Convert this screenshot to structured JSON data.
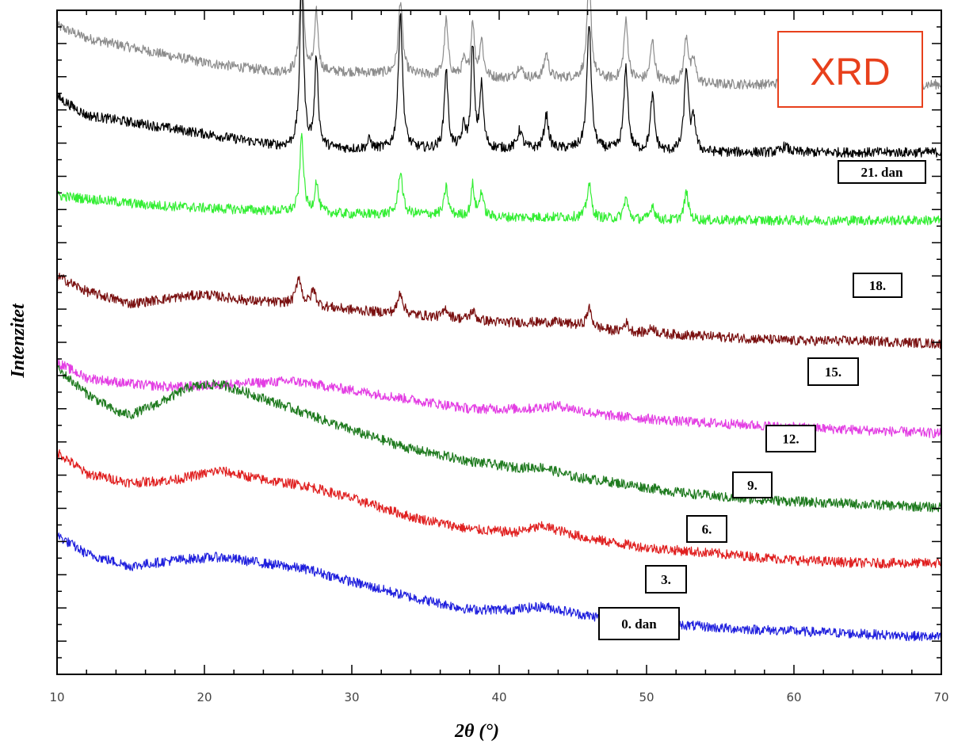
{
  "chart_data": {
    "type": "line",
    "title": "",
    "badge": "XRD",
    "xlabel": "2θ (°)",
    "ylabel": "Intenzitet",
    "xlim": [
      10,
      70
    ],
    "x_ticks": [
      "10",
      "20",
      "30",
      "40",
      "50",
      "60",
      "70"
    ],
    "grid": false,
    "colors": {
      "badge": "#e8401c",
      "axes": "#000000",
      "ticks": "#444444"
    },
    "series": [
      {
        "name": "21. dan",
        "color": "#8c8c8c",
        "baseline": [
          [
            10,
            0.95
          ],
          [
            12,
            0.91
          ],
          [
            16,
            0.87
          ],
          [
            20,
            0.83
          ],
          [
            25,
            0.8
          ],
          [
            30,
            0.8
          ],
          [
            35,
            0.79
          ],
          [
            40,
            0.78
          ],
          [
            45,
            0.78
          ],
          [
            50,
            0.77
          ],
          [
            55,
            0.76
          ],
          [
            60,
            0.76
          ],
          [
            65,
            0.76
          ],
          [
            70,
            0.76
          ]
        ],
        "peaks": [
          [
            26.6,
            0.36,
            0.15
          ],
          [
            27.6,
            0.19,
            0.14
          ],
          [
            33.3,
            0.24,
            0.17
          ],
          [
            36.4,
            0.18,
            0.15
          ],
          [
            37.6,
            0.05,
            0.15
          ],
          [
            38.2,
            0.18,
            0.13
          ],
          [
            38.8,
            0.12,
            0.15
          ],
          [
            41.4,
            0.04,
            0.2
          ],
          [
            43.2,
            0.08,
            0.17
          ],
          [
            46.1,
            0.32,
            0.17
          ],
          [
            48.6,
            0.19,
            0.17
          ],
          [
            50.4,
            0.13,
            0.17
          ],
          [
            52.7,
            0.15,
            0.17
          ],
          [
            53.2,
            0.07,
            0.15
          ],
          [
            59.4,
            0.02,
            0.25
          ]
        ],
        "label": "21. dan"
      },
      {
        "name": "18.",
        "color": "#000000",
        "baseline": [
          [
            10,
            0.72
          ],
          [
            12,
            0.66
          ],
          [
            16,
            0.63
          ],
          [
            20,
            0.6
          ],
          [
            25,
            0.56
          ],
          [
            30,
            0.55
          ],
          [
            35,
            0.55
          ],
          [
            40,
            0.55
          ],
          [
            45,
            0.55
          ],
          [
            50,
            0.54
          ],
          [
            55,
            0.54
          ],
          [
            60,
            0.54
          ],
          [
            65,
            0.54
          ],
          [
            70,
            0.54
          ]
        ],
        "peaks": [
          [
            26.6,
            0.55,
            0.15
          ],
          [
            27.6,
            0.29,
            0.14
          ],
          [
            31.2,
            0.03,
            0.15
          ],
          [
            33.3,
            0.44,
            0.17
          ],
          [
            36.4,
            0.26,
            0.15
          ],
          [
            37.6,
            0.07,
            0.15
          ],
          [
            38.2,
            0.33,
            0.13
          ],
          [
            38.8,
            0.2,
            0.15
          ],
          [
            41.4,
            0.06,
            0.2
          ],
          [
            43.2,
            0.11,
            0.17
          ],
          [
            46.1,
            0.41,
            0.17
          ],
          [
            48.6,
            0.27,
            0.17
          ],
          [
            50.4,
            0.18,
            0.17
          ],
          [
            52.7,
            0.27,
            0.17
          ],
          [
            53.2,
            0.1,
            0.15
          ],
          [
            59.4,
            0.02,
            0.25
          ]
        ],
        "label": "18."
      },
      {
        "name": "15.",
        "color": "#33ee33",
        "baseline": [
          [
            10,
            0.4
          ],
          [
            12,
            0.39
          ],
          [
            16,
            0.37
          ],
          [
            20,
            0.36
          ],
          [
            25,
            0.35
          ],
          [
            30,
            0.34
          ],
          [
            35,
            0.34
          ],
          [
            40,
            0.33
          ],
          [
            45,
            0.33
          ],
          [
            50,
            0.32
          ],
          [
            55,
            0.32
          ],
          [
            60,
            0.32
          ],
          [
            65,
            0.32
          ],
          [
            70,
            0.32
          ]
        ],
        "peaks": [
          [
            26.6,
            0.25,
            0.15
          ],
          [
            27.6,
            0.1,
            0.14
          ],
          [
            33.3,
            0.14,
            0.17
          ],
          [
            36.4,
            0.09,
            0.15
          ],
          [
            38.2,
            0.1,
            0.13
          ],
          [
            38.8,
            0.08,
            0.15
          ],
          [
            46.1,
            0.11,
            0.17
          ],
          [
            48.6,
            0.07,
            0.17
          ],
          [
            50.4,
            0.05,
            0.17
          ],
          [
            52.7,
            0.09,
            0.17
          ]
        ],
        "label": "15."
      },
      {
        "name": "12.",
        "color": "#7a1010",
        "baseline": [
          [
            10,
            0.14
          ],
          [
            12,
            0.09
          ],
          [
            15,
            0.05
          ],
          [
            18,
            0.07
          ],
          [
            20,
            0.08
          ],
          [
            23,
            0.06
          ],
          [
            26,
            0.05
          ],
          [
            30,
            0.03
          ],
          [
            35,
            0.01
          ],
          [
            40,
            -0.01
          ],
          [
            44,
            -0.01
          ],
          [
            48,
            -0.04
          ],
          [
            52,
            -0.05
          ],
          [
            56,
            -0.06
          ],
          [
            60,
            -0.07
          ],
          [
            65,
            -0.07
          ],
          [
            70,
            -0.08
          ]
        ],
        "peaks": [
          [
            26.4,
            0.09,
            0.2
          ],
          [
            27.4,
            0.05,
            0.2
          ],
          [
            33.3,
            0.07,
            0.2
          ],
          [
            36.4,
            0.03,
            0.2
          ],
          [
            38.2,
            0.03,
            0.2
          ],
          [
            46.1,
            0.06,
            0.2
          ],
          [
            48.6,
            0.03,
            0.2
          ],
          [
            50.4,
            0.02,
            0.2
          ]
        ],
        "label": "12."
      },
      {
        "name": "9.",
        "color": "#e33ee3",
        "baseline": [
          [
            10,
            -0.14
          ],
          [
            12,
            -0.19
          ],
          [
            15,
            -0.21
          ],
          [
            18,
            -0.22
          ],
          [
            22,
            -0.21
          ],
          [
            26,
            -0.2
          ],
          [
            30,
            -0.23
          ],
          [
            34,
            -0.26
          ],
          [
            38,
            -0.29
          ],
          [
            42,
            -0.29
          ],
          [
            44,
            -0.28
          ],
          [
            47,
            -0.31
          ],
          [
            52,
            -0.33
          ],
          [
            56,
            -0.34
          ],
          [
            60,
            -0.35
          ],
          [
            65,
            -0.36
          ],
          [
            70,
            -0.37
          ]
        ],
        "peaks": [],
        "label": "9."
      },
      {
        "name": "6.",
        "color": "#1e7a1e",
        "baseline": [
          [
            10,
            -0.16
          ],
          [
            12,
            -0.24
          ],
          [
            14,
            -0.3
          ],
          [
            15,
            -0.31
          ],
          [
            17,
            -0.27
          ],
          [
            19,
            -0.22
          ],
          [
            21,
            -0.21
          ],
          [
            23,
            -0.24
          ],
          [
            26,
            -0.29
          ],
          [
            30,
            -0.36
          ],
          [
            34,
            -0.42
          ],
          [
            38,
            -0.46
          ],
          [
            41,
            -0.48
          ],
          [
            43,
            -0.48
          ],
          [
            45,
            -0.51
          ],
          [
            48,
            -0.53
          ],
          [
            52,
            -0.56
          ],
          [
            56,
            -0.58
          ],
          [
            60,
            -0.59
          ],
          [
            65,
            -0.6
          ],
          [
            70,
            -0.61
          ]
        ],
        "peaks": [],
        "label": "6."
      },
      {
        "name": "3.",
        "color": "#e02020",
        "baseline": [
          [
            10,
            -0.43
          ],
          [
            12,
            -0.5
          ],
          [
            15,
            -0.53
          ],
          [
            18,
            -0.52
          ],
          [
            21,
            -0.49
          ],
          [
            24,
            -0.52
          ],
          [
            27,
            -0.54
          ],
          [
            30,
            -0.58
          ],
          [
            34,
            -0.64
          ],
          [
            38,
            -0.68
          ],
          [
            41,
            -0.69
          ],
          [
            43,
            -0.67
          ],
          [
            46,
            -0.71
          ],
          [
            50,
            -0.74
          ],
          [
            55,
            -0.76
          ],
          [
            60,
            -0.78
          ],
          [
            65,
            -0.79
          ],
          [
            70,
            -0.79
          ]
        ],
        "peaks": [],
        "label": "3."
      },
      {
        "name": "0. dan",
        "color": "#1f1fdd",
        "baseline": [
          [
            10,
            -0.7
          ],
          [
            12,
            -0.76
          ],
          [
            15,
            -0.8
          ],
          [
            18,
            -0.78
          ],
          [
            21,
            -0.77
          ],
          [
            24,
            -0.79
          ],
          [
            27,
            -0.81
          ],
          [
            30,
            -0.85
          ],
          [
            34,
            -0.9
          ],
          [
            38,
            -0.94
          ],
          [
            41,
            -0.94
          ],
          [
            43,
            -0.93
          ],
          [
            46,
            -0.96
          ],
          [
            50,
            -0.98
          ],
          [
            55,
            -1.0
          ],
          [
            60,
            -1.01
          ],
          [
            65,
            -1.02
          ],
          [
            70,
            -1.03
          ]
        ],
        "peaks": [],
        "label": "0. dan"
      }
    ]
  }
}
